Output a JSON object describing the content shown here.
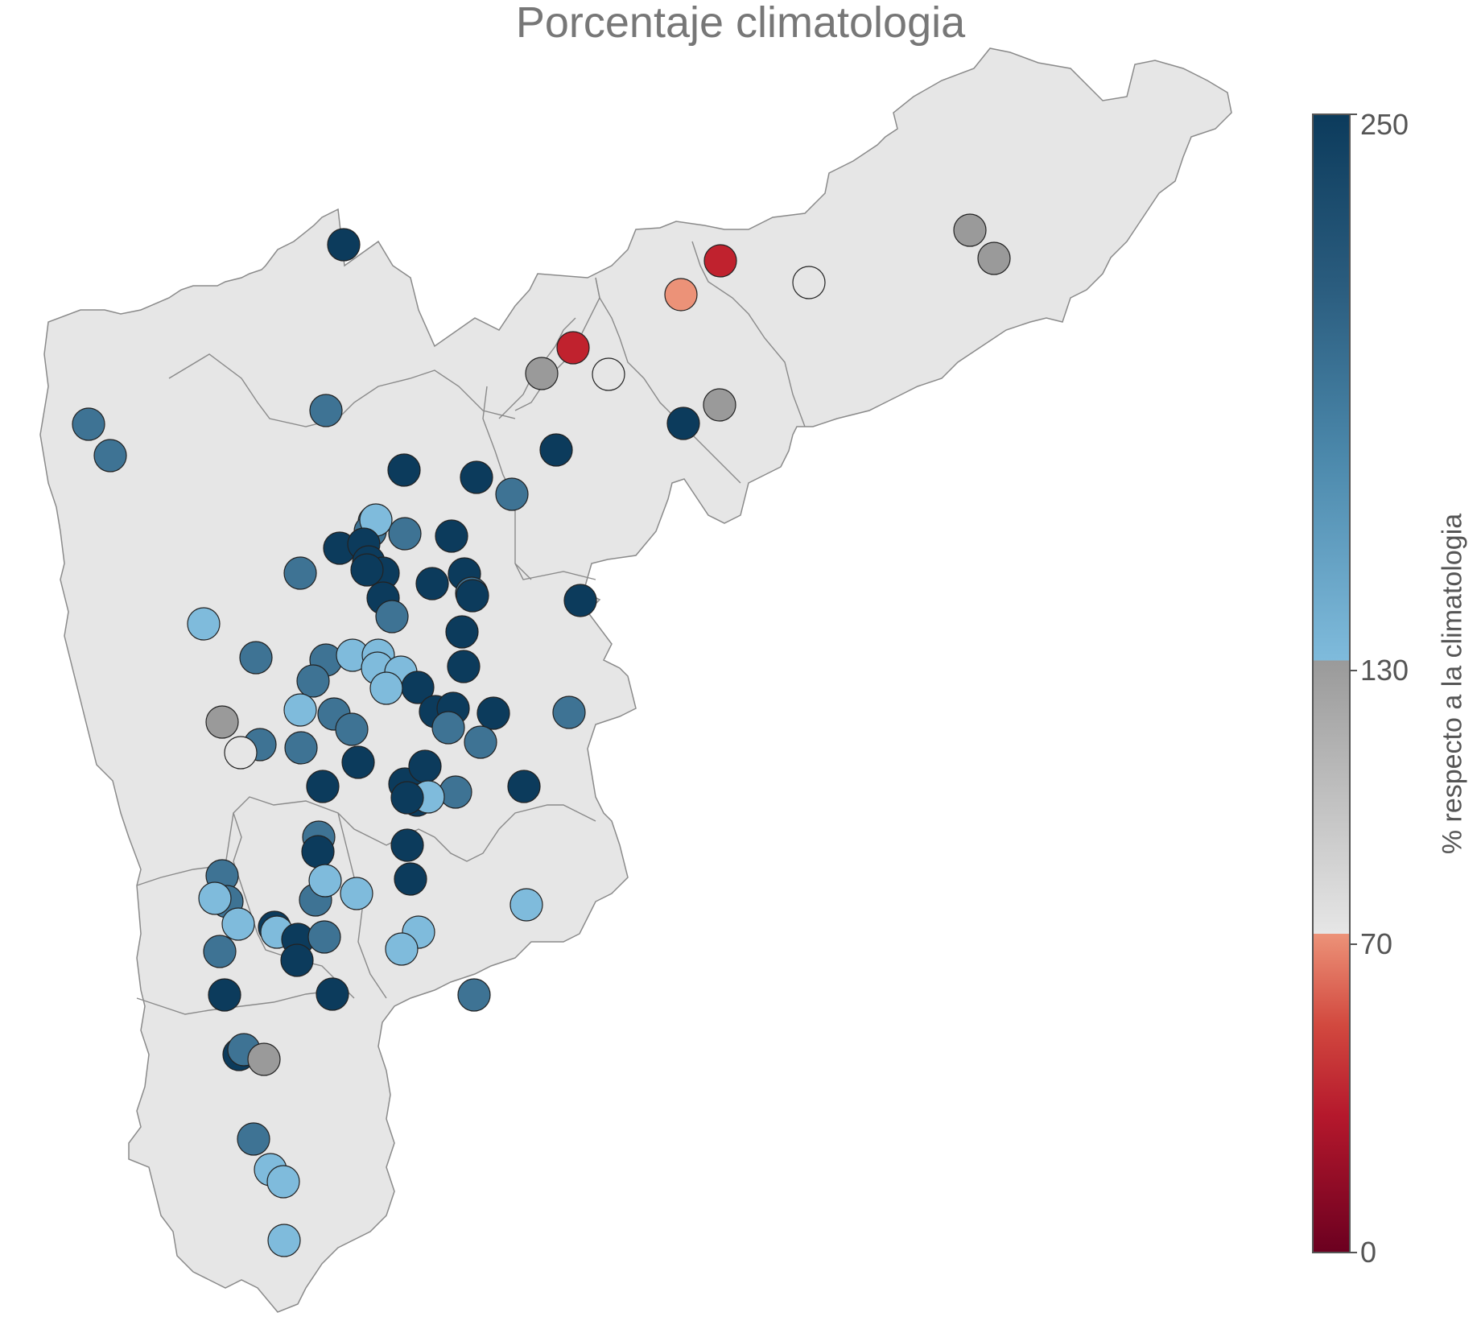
{
  "title": "Porcentaje climatologia",
  "legend": {
    "title": "% respecto a la climatologia",
    "ticks": [
      "250",
      "130",
      "70",
      "0"
    ],
    "range": [
      0,
      250
    ],
    "breaks": [
      0,
      70,
      130,
      250
    ],
    "colors": {
      "low_dark": "#6b0020",
      "low_mid": "#c0222e",
      "low_light": "#ec9278",
      "neutral_light": "#e6e6e6",
      "neutral_dark": "#9a9a9a",
      "high_light": "#7fbbdc",
      "high_mid": "#3e7394",
      "high_dark": "#0c3b5c"
    }
  },
  "map": {
    "region_fill": "#e6e6e6",
    "border_color": "#8a8a8a",
    "station_count": 107
  }
}
